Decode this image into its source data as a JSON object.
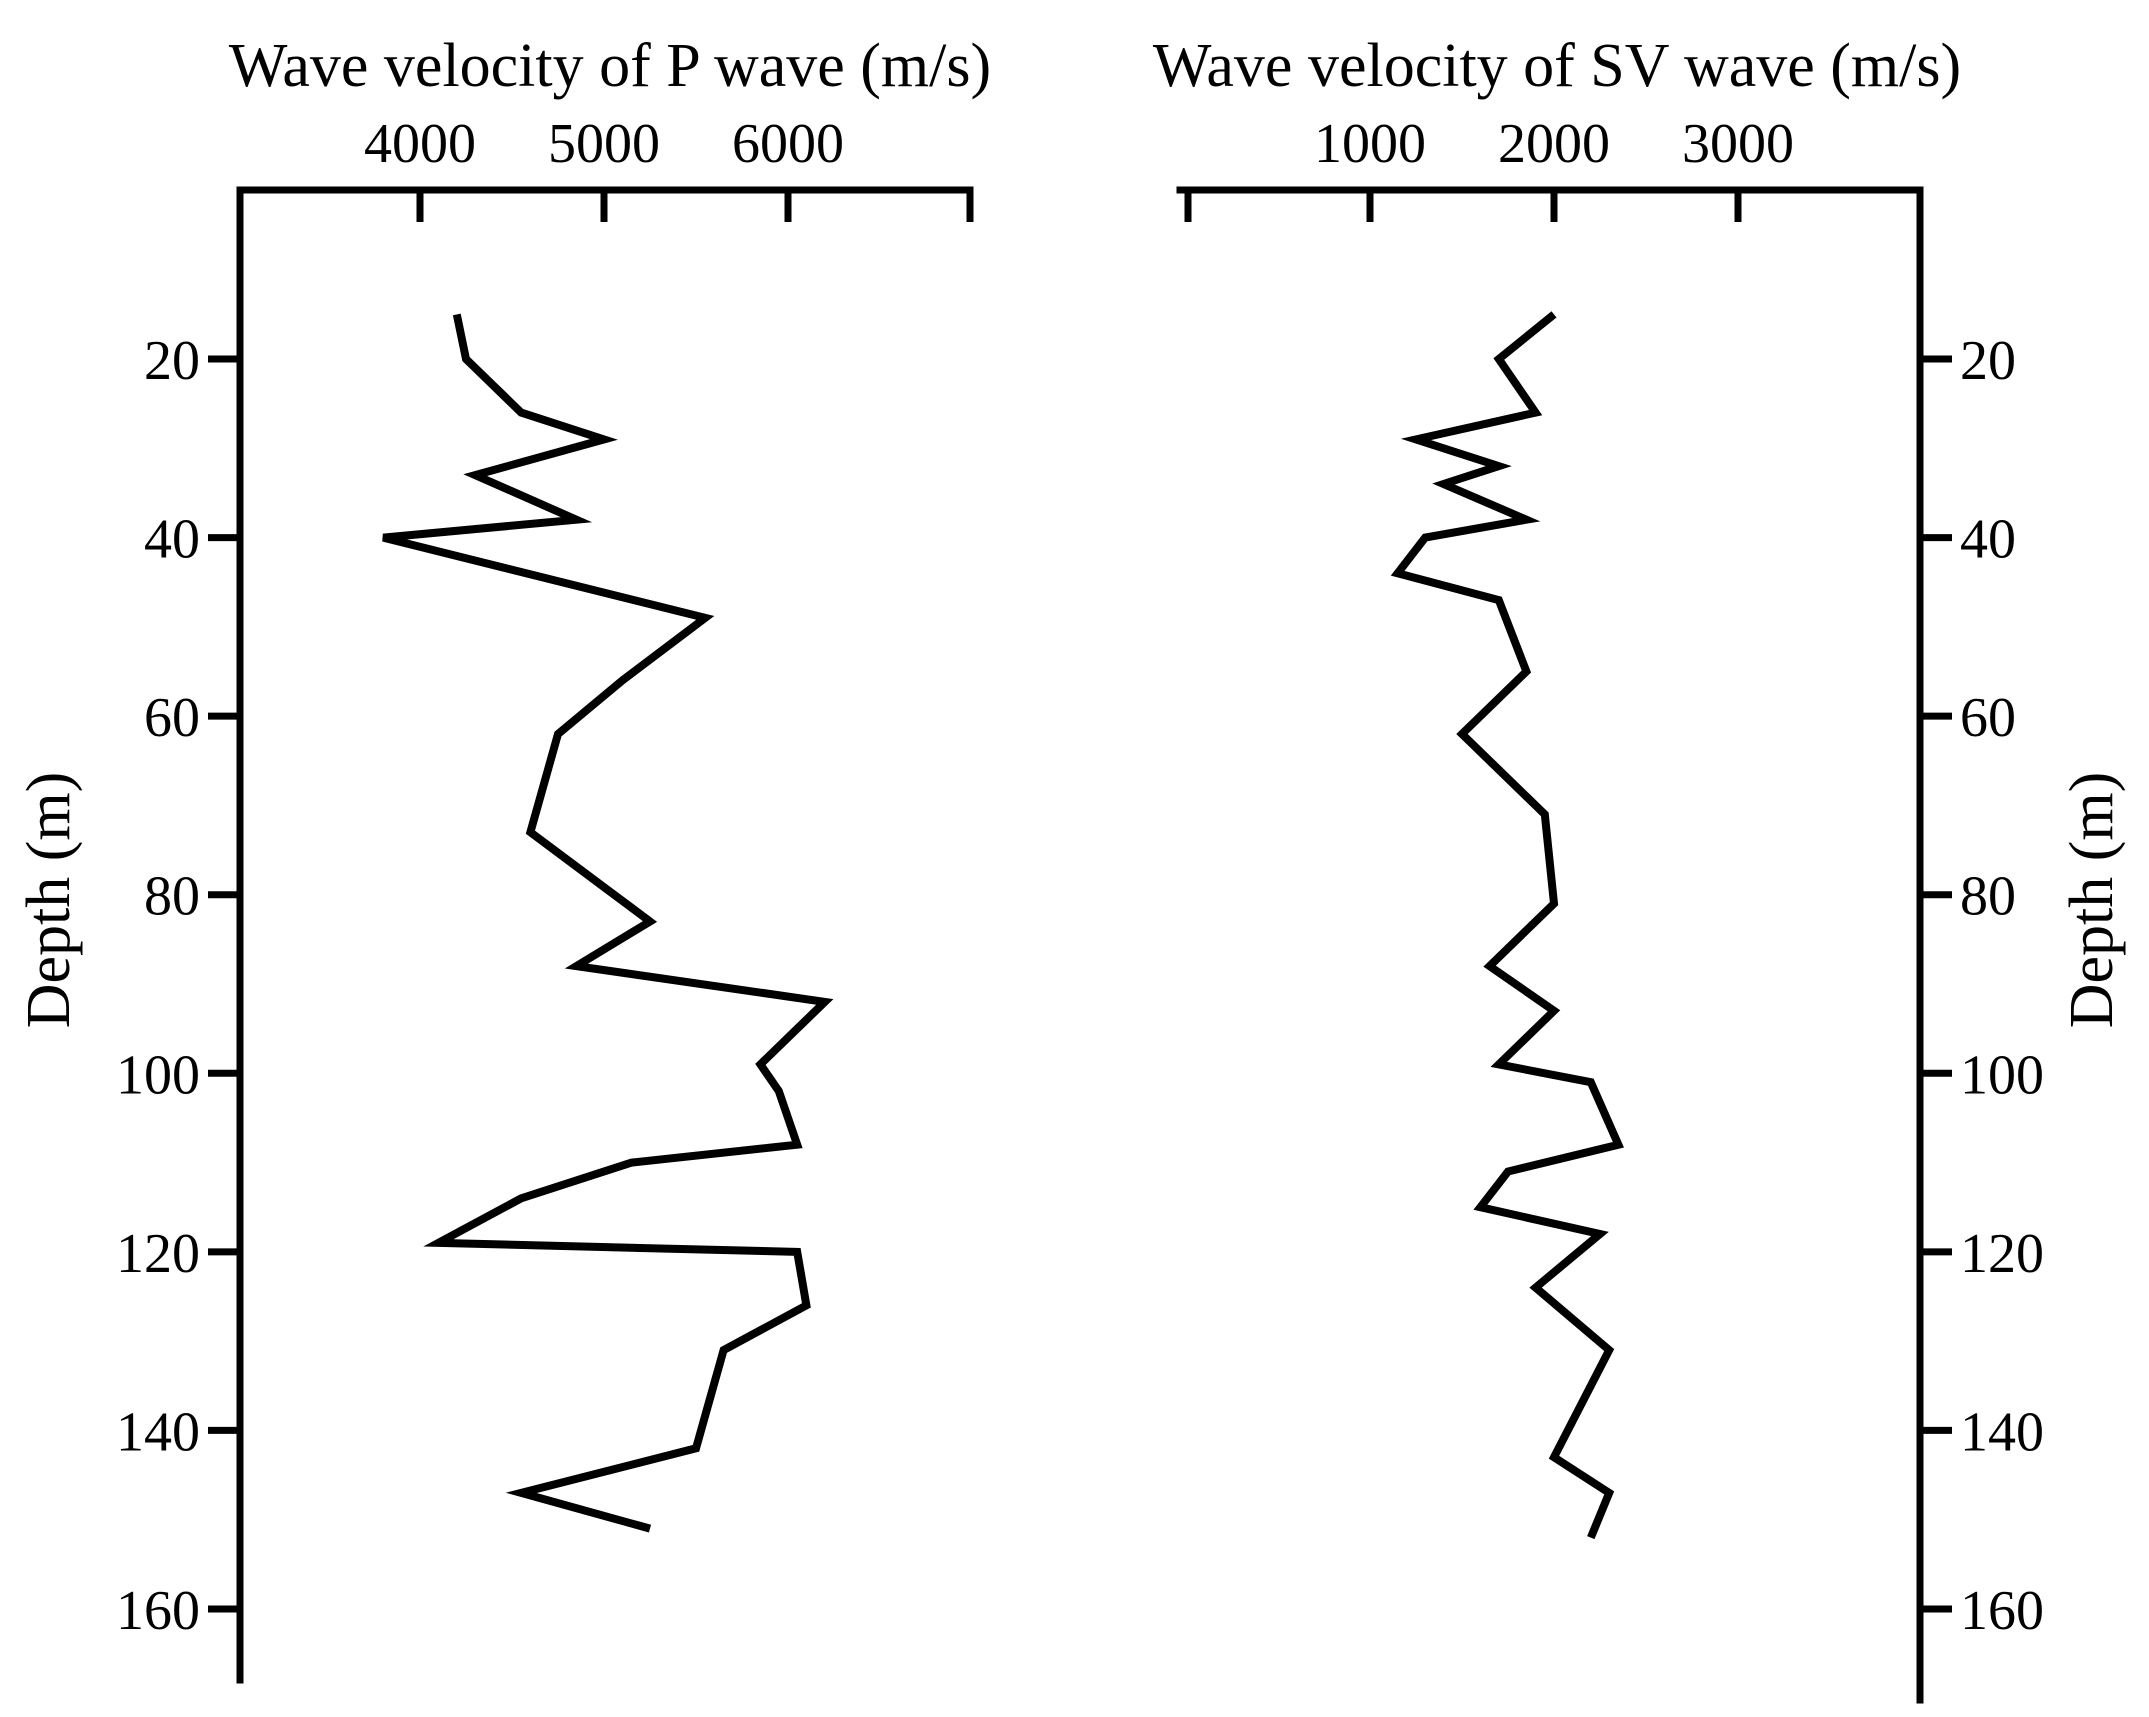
{
  "chart_data": [
    {
      "type": "line",
      "orientation": "depth-profile",
      "xlabel": "Wave velocity of P wave (m/s)",
      "ylabel": "Depth (m)",
      "x_ticks": [
        4000,
        5000,
        6000
      ],
      "y_ticks": [
        20,
        40,
        60,
        80,
        100,
        120,
        140,
        160
      ],
      "xlim": [
        3000,
        7000
      ],
      "ylim": [
        0,
        170
      ],
      "x_axis_position": "top",
      "y_axis_position": "left",
      "grid": false,
      "series": [
        {
          "points": [
            {
              "velocity": 4200,
              "depth": 15
            },
            {
              "velocity": 4250,
              "depth": 20
            },
            {
              "velocity": 4550,
              "depth": 26
            },
            {
              "velocity": 5000,
              "depth": 29
            },
            {
              "velocity": 4300,
              "depth": 33
            },
            {
              "velocity": 4850,
              "depth": 38
            },
            {
              "velocity": 3800,
              "depth": 40
            },
            {
              "velocity": 5550,
              "depth": 49
            },
            {
              "velocity": 5100,
              "depth": 56
            },
            {
              "velocity": 4750,
              "depth": 62
            },
            {
              "velocity": 4600,
              "depth": 73
            },
            {
              "velocity": 5250,
              "depth": 83
            },
            {
              "velocity": 4850,
              "depth": 88
            },
            {
              "velocity": 6200,
              "depth": 92
            },
            {
              "velocity": 5850,
              "depth": 99
            },
            {
              "velocity": 5950,
              "depth": 102
            },
            {
              "velocity": 6050,
              "depth": 108
            },
            {
              "velocity": 5150,
              "depth": 110
            },
            {
              "velocity": 4550,
              "depth": 114
            },
            {
              "velocity": 4100,
              "depth": 119
            },
            {
              "velocity": 6050,
              "depth": 120
            },
            {
              "velocity": 6100,
              "depth": 126
            },
            {
              "velocity": 5650,
              "depth": 131
            },
            {
              "velocity": 5500,
              "depth": 142
            },
            {
              "velocity": 4550,
              "depth": 147
            },
            {
              "velocity": 5250,
              "depth": 151
            }
          ]
        }
      ]
    },
    {
      "type": "line",
      "orientation": "depth-profile",
      "xlabel": "Wave velocity of SV wave (m/s)",
      "ylabel": "Depth (m)",
      "x_ticks": [
        1000,
        2000,
        3000
      ],
      "y_ticks": [
        20,
        40,
        60,
        80,
        100,
        120,
        140,
        160
      ],
      "xlim": [
        0,
        4000
      ],
      "ylim": [
        0,
        170
      ],
      "x_axis_position": "top",
      "y_axis_position": "right",
      "grid": false,
      "series": [
        {
          "points": [
            {
              "velocity": 2000,
              "depth": 15
            },
            {
              "velocity": 1700,
              "depth": 20
            },
            {
              "velocity": 1900,
              "depth": 26
            },
            {
              "velocity": 1250,
              "depth": 29
            },
            {
              "velocity": 1700,
              "depth": 32
            },
            {
              "velocity": 1400,
              "depth": 34
            },
            {
              "velocity": 1850,
              "depth": 38
            },
            {
              "velocity": 1300,
              "depth": 40
            },
            {
              "velocity": 1150,
              "depth": 44
            },
            {
              "velocity": 1700,
              "depth": 47
            },
            {
              "velocity": 1850,
              "depth": 55
            },
            {
              "velocity": 1500,
              "depth": 62
            },
            {
              "velocity": 1950,
              "depth": 71
            },
            {
              "velocity": 2000,
              "depth": 81
            },
            {
              "velocity": 1650,
              "depth": 88
            },
            {
              "velocity": 2000,
              "depth": 93
            },
            {
              "velocity": 1700,
              "depth": 99
            },
            {
              "velocity": 2200,
              "depth": 101
            },
            {
              "velocity": 2350,
              "depth": 108
            },
            {
              "velocity": 1750,
              "depth": 111
            },
            {
              "velocity": 1600,
              "depth": 115
            },
            {
              "velocity": 2250,
              "depth": 118
            },
            {
              "velocity": 1900,
              "depth": 124
            },
            {
              "velocity": 2300,
              "depth": 131
            },
            {
              "velocity": 2000,
              "depth": 143
            },
            {
              "velocity": 2300,
              "depth": 147
            },
            {
              "velocity": 2200,
              "depth": 152
            }
          ]
        }
      ]
    }
  ]
}
